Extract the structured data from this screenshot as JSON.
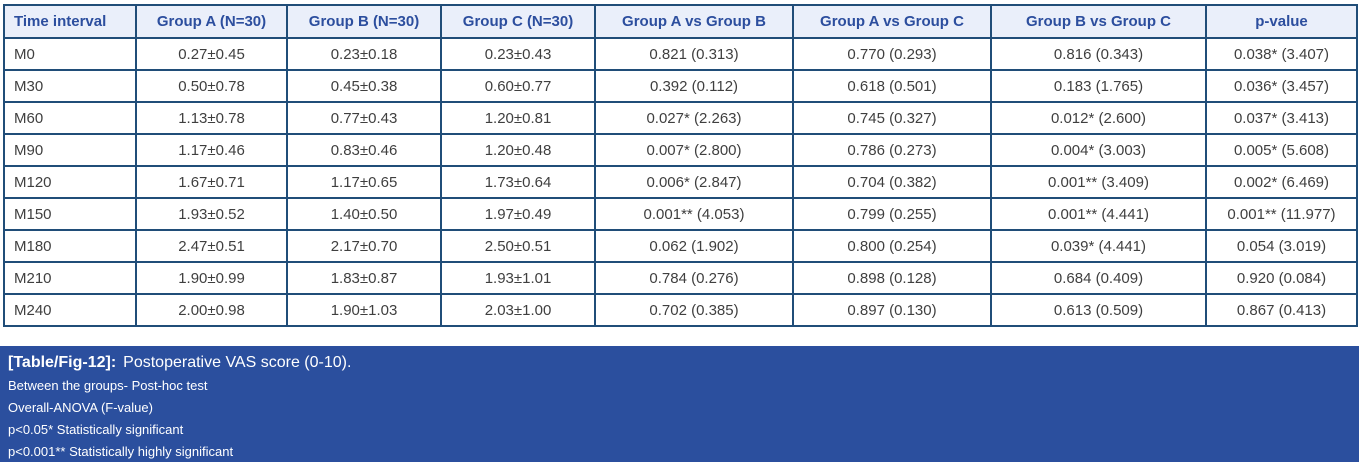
{
  "table": {
    "columns": [
      "Time interval",
      "Group A (N=30)",
      "Group B (N=30)",
      "Group C (N=30)",
      "Group A vs Group B",
      "Group A vs Group C",
      "Group B vs Group C",
      "p-value"
    ],
    "rows": [
      [
        "M0",
        "0.27±0.45",
        "0.23±0.18",
        "0.23±0.43",
        "0.821 (0.313)",
        "0.770 (0.293)",
        "0.816 (0.343)",
        "0.038* (3.407)"
      ],
      [
        "M30",
        "0.50±0.78",
        "0.45±0.38",
        "0.60±0.77",
        "0.392 (0.112)",
        "0.618 (0.501)",
        "0.183 (1.765)",
        "0.036* (3.457)"
      ],
      [
        "M60",
        "1.13±0.78",
        "0.77±0.43",
        "1.20±0.81",
        "0.027* (2.263)",
        "0.745 (0.327)",
        "0.012* (2.600)",
        "0.037* (3.413)"
      ],
      [
        "M90",
        "1.17±0.46",
        "0.83±0.46",
        "1.20±0.48",
        "0.007* (2.800)",
        "0.786 (0.273)",
        "0.004* (3.003)",
        "0.005* (5.608)"
      ],
      [
        "M120",
        "1.67±0.71",
        "1.17±0.65",
        "1.73±0.64",
        "0.006* (2.847)",
        "0.704 (0.382)",
        "0.001** (3.409)",
        "0.002* (6.469)"
      ],
      [
        "M150",
        "1.93±0.52",
        "1.40±0.50",
        "1.97±0.49",
        "0.001** (4.053)",
        "0.799 (0.255)",
        "0.001** (4.441)",
        "0.001** (11.977)"
      ],
      [
        "M180",
        "2.47±0.51",
        "2.17±0.70",
        "2.50±0.51",
        "0.062 (1.902)",
        "0.800 (0.254)",
        "0.039* (4.441)",
        "0.054 (3.019)"
      ],
      [
        "M210",
        "1.90±0.99",
        "1.83±0.87",
        "1.93±1.01",
        "0.784 (0.276)",
        "0.898 (0.128)",
        "0.684 (0.409)",
        "0.920 (0.084)"
      ],
      [
        "M240",
        "2.00±0.98",
        "1.90±1.03",
        "2.03±1.00",
        "0.702 (0.385)",
        "0.897 (0.130)",
        "0.613 (0.509)",
        "0.867 (0.413)"
      ]
    ]
  },
  "caption": {
    "label": "[Table/Fig-12]:",
    "title": "Postoperative VAS score (0-10).",
    "notes": [
      "Between the groups- Post-hoc test",
      "Overall-ANOVA (F-value)",
      "p<0.05* Statistically significant",
      "p<0.001** Statistically highly significant"
    ]
  },
  "colors": {
    "header_bg": "#eaeffa",
    "header_text": "#2c4e9e",
    "border": "#204d78",
    "body_text": "#3f3f3f",
    "caption_bg": "#2b4f9e",
    "caption_text": "#ffffff"
  }
}
